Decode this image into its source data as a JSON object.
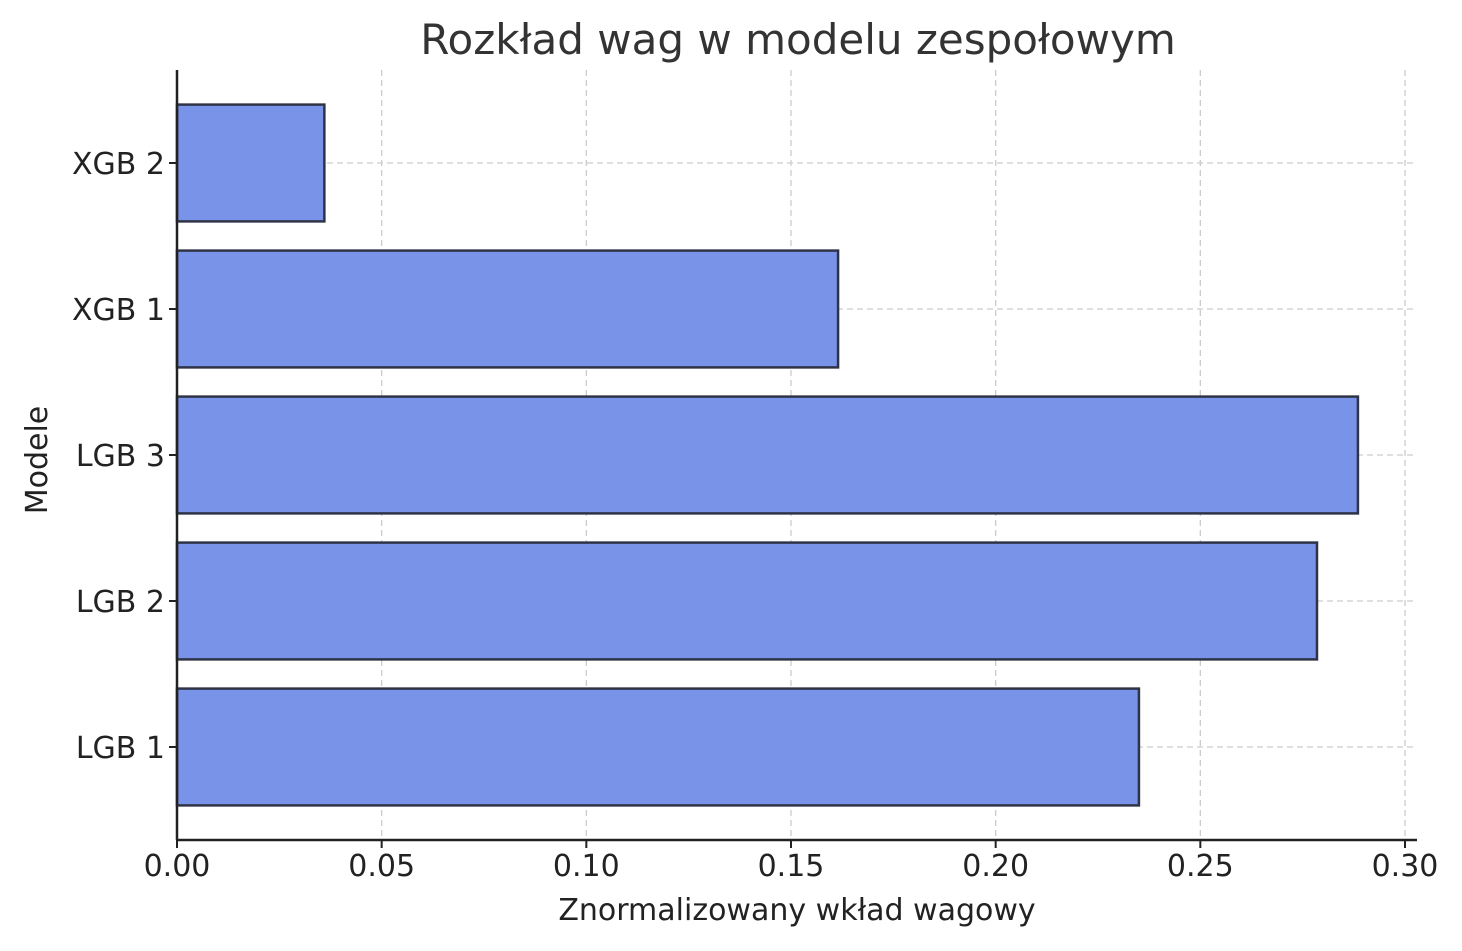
{
  "chart_data": {
    "type": "bar",
    "orientation": "horizontal",
    "title": "Rozkład wag w modelu zespołowym",
    "xlabel": "Znormalizowany wkład wagowy",
    "ylabel": "Modele",
    "categories": [
      "LGB 1",
      "LGB 2",
      "LGB 3",
      "XGB 1",
      "XGB 2"
    ],
    "values": [
      0.235,
      0.2785,
      0.2885,
      0.1615,
      0.036
    ],
    "xlim": [
      0,
      0.3
    ],
    "xticks": [
      "0.00",
      "0.05",
      "0.10",
      "0.15",
      "0.20",
      "0.25",
      "0.30"
    ],
    "grid": true,
    "bar_color": "#7893e8",
    "edge_color": "#2e3446"
  }
}
